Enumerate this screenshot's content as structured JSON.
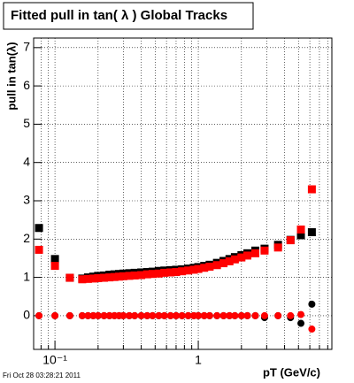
{
  "chart_data": {
    "type": "scatter",
    "title": "Fitted pull in tan( λ )  Global Tracks",
    "y_label": "pull in tan(λ)",
    "x_label": "pT (GeV/c)",
    "footer": "Fri Oct 28 03:28:21 2011",
    "log_x": true,
    "grid": true,
    "xlim": [
      0.071,
      8.55
    ],
    "xticks": [
      {
        "value": 0.1,
        "label": "10⁻¹"
      },
      1
    ],
    "xminorticks": [
      0.08,
      0.09,
      0.2,
      0.3,
      0.4,
      0.5,
      0.6,
      0.7,
      0.8,
      0.9,
      2,
      3,
      4,
      5,
      6,
      7,
      8
    ],
    "ylim": [
      -0.88,
      7.25
    ],
    "yticks": [
      0,
      1,
      2,
      3,
      4,
      5,
      6,
      7
    ],
    "x": [
      0.0774,
      0.1,
      0.127,
      0.155,
      0.17,
      0.185,
      0.2,
      0.22,
      0.24,
      0.26,
      0.28,
      0.3,
      0.33,
      0.36,
      0.4,
      0.44,
      0.48,
      0.53,
      0.58,
      0.64,
      0.7,
      0.77,
      0.85,
      0.93,
      1.0,
      1.1,
      1.2,
      1.35,
      1.5,
      1.65,
      1.8,
      2.0,
      2.2,
      2.5,
      2.9,
      3.6,
      4.4,
      5.2,
      6.2
    ],
    "series": [
      {
        "color": "#000000",
        "marker": "square",
        "values": [
          2.29,
          1.48,
          0.99,
          0.97,
          1.0,
          1.02,
          1.04,
          1.05,
          1.07,
          1.08,
          1.09,
          1.1,
          1.11,
          1.12,
          1.13,
          1.14,
          1.15,
          1.17,
          1.18,
          1.19,
          1.2,
          1.21,
          1.23,
          1.25,
          1.27,
          1.3,
          1.33,
          1.38,
          1.43,
          1.48,
          1.53,
          1.58,
          1.63,
          1.7,
          1.75,
          1.85,
          1.98,
          2.1,
          2.18
        ]
      },
      {
        "color": "#000000",
        "marker": "circle",
        "values": [
          0,
          0,
          0,
          0,
          0,
          0,
          0,
          0,
          0,
          0,
          0,
          0,
          0,
          0,
          0,
          0,
          0,
          0,
          0,
          0,
          0,
          0,
          0,
          0,
          0,
          0,
          0,
          0,
          0,
          0,
          0,
          0,
          0,
          0,
          -0.05,
          0,
          -0.05,
          -0.2,
          0.3
        ]
      },
      {
        "color": "#ff0000",
        "marker": "square",
        "values": [
          1.72,
          1.3,
          0.99,
          0.95,
          0.96,
          0.97,
          0.98,
          0.99,
          1.0,
          1.01,
          1.02,
          1.03,
          1.04,
          1.05,
          1.06,
          1.08,
          1.09,
          1.1,
          1.12,
          1.13,
          1.14,
          1.16,
          1.18,
          1.2,
          1.22,
          1.25,
          1.28,
          1.32,
          1.37,
          1.42,
          1.47,
          1.52,
          1.57,
          1.63,
          1.7,
          1.78,
          1.97,
          2.25,
          3.3
        ]
      },
      {
        "color": "#ff0000",
        "marker": "circle",
        "values": [
          0,
          0,
          0,
          0,
          0,
          0,
          0,
          0,
          0,
          0,
          0,
          0,
          0,
          0,
          0,
          0,
          0,
          0,
          0,
          0,
          0,
          0,
          0,
          0,
          0,
          0,
          0,
          0,
          0,
          0,
          0,
          0,
          0,
          0,
          0,
          0,
          0,
          0.03,
          -0.35
        ]
      }
    ]
  }
}
